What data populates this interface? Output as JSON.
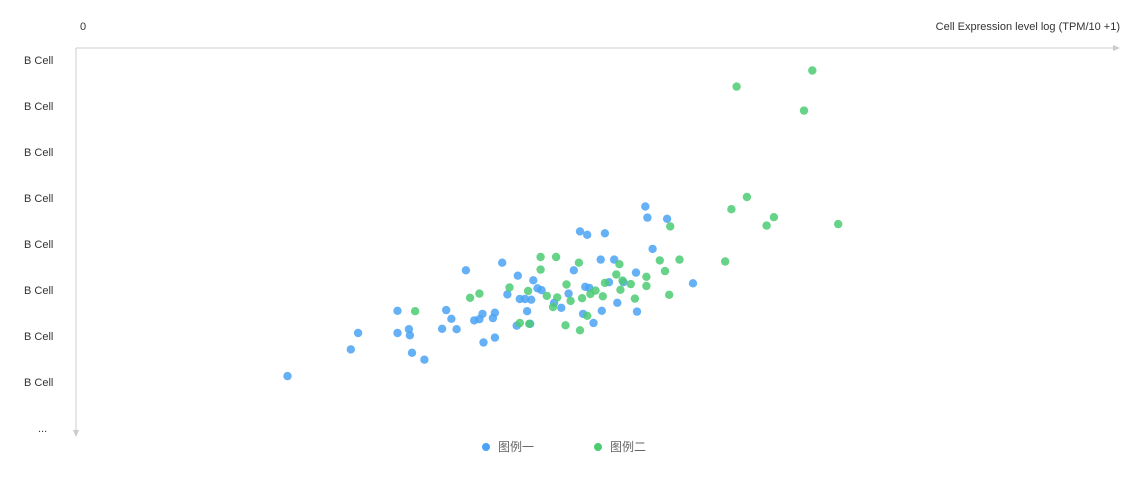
{
  "chart_data": {
    "type": "scatter",
    "x_origin_label": "0",
    "xlabel": "Cell Expression level log (TPM/10 +1)",
    "y_tick_labels": [
      "B Cell",
      "B Cell",
      "B Cell",
      "B Cell",
      "B Cell",
      "B Cell",
      "B Cell",
      "B Cell",
      "..."
    ],
    "xlim": [
      0,
      100
    ],
    "ylim": [
      0,
      100
    ],
    "legend_position": "bottom-center",
    "grid": false,
    "series": [
      {
        "name": "图例一",
        "color": "#4BA3F5",
        "points": [
          [
            20.4,
            14.1
          ],
          [
            26.5,
            21.1
          ],
          [
            27.2,
            25.4
          ],
          [
            31.0,
            31.2
          ],
          [
            31.0,
            25.4
          ],
          [
            32.2,
            24.8
          ],
          [
            32.1,
            26.4
          ],
          [
            32.4,
            20.2
          ],
          [
            33.6,
            18.4
          ],
          [
            35.3,
            26.5
          ],
          [
            35.7,
            31.4
          ],
          [
            36.2,
            29.1
          ],
          [
            36.7,
            26.4
          ],
          [
            37.6,
            41.8
          ],
          [
            38.4,
            28.7
          ],
          [
            38.9,
            29.0
          ],
          [
            39.2,
            30.4
          ],
          [
            39.3,
            22.9
          ],
          [
            40.2,
            29.3
          ],
          [
            40.4,
            30.7
          ],
          [
            40.4,
            24.2
          ],
          [
            41.1,
            43.8
          ],
          [
            41.6,
            35.5
          ],
          [
            42.5,
            27.3
          ],
          [
            42.6,
            40.4
          ],
          [
            42.8,
            34.3
          ],
          [
            43.3,
            34.3
          ],
          [
            43.5,
            31.1
          ],
          [
            43.8,
            27.8
          ],
          [
            43.9,
            34.1
          ],
          [
            44.1,
            39.2
          ],
          [
            44.5,
            37.1
          ],
          [
            44.9,
            36.6
          ],
          [
            46.1,
            33.3
          ],
          [
            46.8,
            32.0
          ],
          [
            47.5,
            35.7
          ],
          [
            48.0,
            41.8
          ],
          [
            48.6,
            52.0
          ],
          [
            48.9,
            30.4
          ],
          [
            49.1,
            37.5
          ],
          [
            49.3,
            51.1
          ],
          [
            49.5,
            37.2
          ],
          [
            49.9,
            28.0
          ],
          [
            50.6,
            44.6
          ],
          [
            50.7,
            31.2
          ],
          [
            51.0,
            51.5
          ],
          [
            51.4,
            38.7
          ],
          [
            51.9,
            44.6
          ],
          [
            52.2,
            33.3
          ],
          [
            52.8,
            38.7
          ],
          [
            54.0,
            41.2
          ],
          [
            54.1,
            31.0
          ],
          [
            54.9,
            58.5
          ],
          [
            55.1,
            55.6
          ],
          [
            55.6,
            47.4
          ],
          [
            57.0,
            55.3
          ],
          [
            59.5,
            38.4
          ]
        ]
      },
      {
        "name": "图例二",
        "color": "#4CCB73",
        "points": [
          [
            32.7,
            31.1
          ],
          [
            38.0,
            34.6
          ],
          [
            38.9,
            35.7
          ],
          [
            41.8,
            37.3
          ],
          [
            42.8,
            28.0
          ],
          [
            43.7,
            27.8
          ],
          [
            43.6,
            36.4
          ],
          [
            44.8,
            42.0
          ],
          [
            44.8,
            45.3
          ],
          [
            45.4,
            35.1
          ],
          [
            46.0,
            32.2
          ],
          [
            46.4,
            34.7
          ],
          [
            46.3,
            45.3
          ],
          [
            47.3,
            38.1
          ],
          [
            47.2,
            27.4
          ],
          [
            47.7,
            33.8
          ],
          [
            48.5,
            43.8
          ],
          [
            48.6,
            26.1
          ],
          [
            48.8,
            34.5
          ],
          [
            49.3,
            29.9
          ],
          [
            49.6,
            35.6
          ],
          [
            50.1,
            36.5
          ],
          [
            51.0,
            38.5
          ],
          [
            50.8,
            35.0
          ],
          [
            52.1,
            40.7
          ],
          [
            52.4,
            43.4
          ],
          [
            52.5,
            36.7
          ],
          [
            52.7,
            39.1
          ],
          [
            53.5,
            38.2
          ],
          [
            53.9,
            34.4
          ],
          [
            55.0,
            37.7
          ],
          [
            55.0,
            40.1
          ],
          [
            56.3,
            44.4
          ],
          [
            56.8,
            41.6
          ],
          [
            57.2,
            35.4
          ],
          [
            57.3,
            53.3
          ],
          [
            58.2,
            44.6
          ],
          [
            62.6,
            44.1
          ],
          [
            63.2,
            57.8
          ],
          [
            63.7,
            89.9
          ],
          [
            64.7,
            61.0
          ],
          [
            66.6,
            53.5
          ],
          [
            67.3,
            55.7
          ],
          [
            70.2,
            83.6
          ],
          [
            71.0,
            94.1
          ],
          [
            73.5,
            53.9
          ]
        ]
      }
    ]
  }
}
